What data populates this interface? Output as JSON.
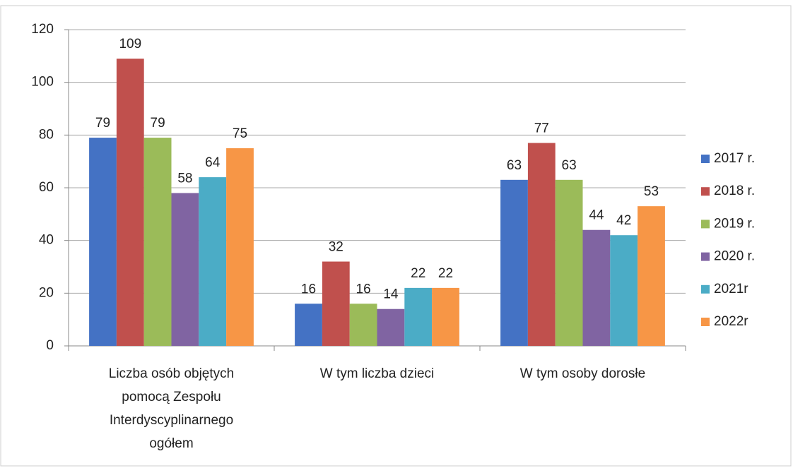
{
  "chart_data": {
    "type": "bar",
    "categories": [
      "Liczba osób objętych pomocą Zespołu Interdyscyplinarnego ogółem",
      "W tym liczba dzieci",
      "W tym osoby dorosłe"
    ],
    "series": [
      {
        "name": "2017 r.",
        "color": "#4472c4",
        "values": [
          79,
          16,
          63
        ]
      },
      {
        "name": "2018 r.",
        "color": "#c0504d",
        "values": [
          109,
          32,
          77
        ]
      },
      {
        "name": "2019 r.",
        "color": "#9bbb59",
        "values": [
          79,
          16,
          63
        ]
      },
      {
        "name": "2020 r.",
        "color": "#8064a2",
        "values": [
          58,
          14,
          44
        ]
      },
      {
        "name": "2021r",
        "color": "#4bacc6",
        "values": [
          64,
          22,
          42
        ]
      },
      {
        "name": "2022r",
        "color": "#f79646",
        "values": [
          75,
          22,
          53
        ]
      }
    ],
    "ylim": [
      0,
      120
    ],
    "yticks": [
      0,
      20,
      40,
      60,
      80,
      100,
      120
    ],
    "grid": true,
    "legend": "right"
  }
}
